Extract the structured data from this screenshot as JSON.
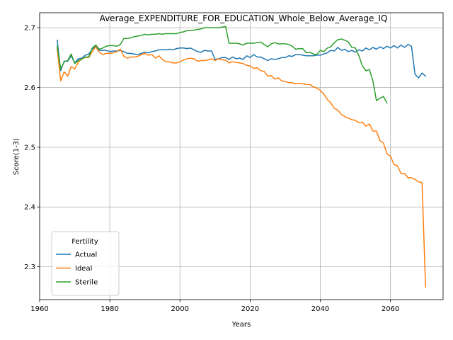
{
  "chart_data": {
    "type": "line",
    "title": "Average_EXPENDITURE_FOR_EDUCATION_Whole_Below_Average_IQ",
    "xlabel": "Years",
    "ylabel": "Score(1-3)",
    "xlim": [
      1960,
      2075
    ],
    "ylim": [
      2.245,
      2.725
    ],
    "xticks": [
      1960,
      1980,
      2000,
      2020,
      2040,
      2060
    ],
    "yticks": [
      2.3,
      2.4,
      2.5,
      2.6,
      2.7
    ],
    "grid": true,
    "legend": {
      "title": "Fertility",
      "placement": "lower-left"
    },
    "series": [
      {
        "name": "Actual",
        "color": "#1f77b4",
        "points": [
          [
            1965,
            2.679
          ],
          [
            1966,
            2.628
          ],
          [
            1967,
            2.644
          ],
          [
            1968,
            2.644
          ],
          [
            1969,
            2.653
          ],
          [
            1970,
            2.641
          ],
          [
            1971,
            2.648
          ],
          [
            1972,
            2.649
          ],
          [
            1973,
            2.654
          ],
          [
            1974,
            2.656
          ],
          [
            1975,
            2.664
          ],
          [
            1976,
            2.669
          ],
          [
            1977,
            2.662
          ],
          [
            1978,
            2.662
          ],
          [
            1979,
            2.662
          ],
          [
            1980,
            2.66
          ],
          [
            1981,
            2.661
          ],
          [
            1982,
            2.661
          ],
          [
            1983,
            2.662
          ],
          [
            1984,
            2.66
          ],
          [
            1985,
            2.657
          ],
          [
            1986,
            2.657
          ],
          [
            1987,
            2.656
          ],
          [
            1988,
            2.655
          ],
          [
            1989,
            2.657
          ],
          [
            1990,
            2.659
          ],
          [
            1991,
            2.658
          ],
          [
            1992,
            2.66
          ],
          [
            1993,
            2.661
          ],
          [
            1994,
            2.663
          ],
          [
            1995,
            2.663
          ],
          [
            1996,
            2.663
          ],
          [
            1997,
            2.664
          ],
          [
            1998,
            2.663
          ],
          [
            1999,
            2.665
          ],
          [
            2000,
            2.666
          ],
          [
            2001,
            2.666
          ],
          [
            2002,
            2.665
          ],
          [
            2003,
            2.666
          ],
          [
            2004,
            2.663
          ],
          [
            2005,
            2.66
          ],
          [
            2006,
            2.659
          ],
          [
            2007,
            2.662
          ],
          [
            2008,
            2.661
          ],
          [
            2009,
            2.661
          ],
          [
            2010,
            2.647
          ],
          [
            2011,
            2.648
          ],
          [
            2012,
            2.65
          ],
          [
            2013,
            2.65
          ],
          [
            2014,
            2.647
          ],
          [
            2015,
            2.651
          ],
          [
            2016,
            2.648
          ],
          [
            2017,
            2.649
          ],
          [
            2018,
            2.647
          ],
          [
            2019,
            2.653
          ],
          [
            2020,
            2.65
          ],
          [
            2021,
            2.655
          ],
          [
            2022,
            2.651
          ],
          [
            2023,
            2.651
          ],
          [
            2024,
            2.648
          ],
          [
            2025,
            2.645
          ],
          [
            2026,
            2.648
          ],
          [
            2027,
            2.647
          ],
          [
            2028,
            2.648
          ],
          [
            2029,
            2.65
          ],
          [
            2030,
            2.65
          ],
          [
            2031,
            2.653
          ],
          [
            2032,
            2.652
          ],
          [
            2033,
            2.655
          ],
          [
            2034,
            2.655
          ],
          [
            2035,
            2.654
          ],
          [
            2036,
            2.653
          ],
          [
            2037,
            2.653
          ],
          [
            2038,
            2.653
          ],
          [
            2039,
            2.654
          ],
          [
            2040,
            2.654
          ],
          [
            2041,
            2.656
          ],
          [
            2042,
            2.658
          ],
          [
            2043,
            2.662
          ],
          [
            2044,
            2.661
          ],
          [
            2045,
            2.667
          ],
          [
            2046,
            2.662
          ],
          [
            2047,
            2.664
          ],
          [
            2048,
            2.66
          ],
          [
            2049,
            2.662
          ],
          [
            2050,
            2.659
          ],
          [
            2051,
            2.663
          ],
          [
            2052,
            2.661
          ],
          [
            2053,
            2.666
          ],
          [
            2054,
            2.663
          ],
          [
            2055,
            2.667
          ],
          [
            2056,
            2.664
          ],
          [
            2057,
            2.668
          ],
          [
            2058,
            2.665
          ],
          [
            2059,
            2.669
          ],
          [
            2060,
            2.666
          ],
          [
            2061,
            2.67
          ],
          [
            2062,
            2.666
          ],
          [
            2063,
            2.671
          ],
          [
            2064,
            2.667
          ],
          [
            2065,
            2.672
          ],
          [
            2066,
            2.669
          ],
          [
            2067,
            2.622
          ],
          [
            2068,
            2.616
          ],
          [
            2069,
            2.624
          ],
          [
            2070,
            2.619
          ]
        ]
      },
      {
        "name": "Ideal",
        "color": "#ff7f0e",
        "points": [
          [
            1965,
            2.665
          ],
          [
            1966,
            2.611
          ],
          [
            1967,
            2.626
          ],
          [
            1968,
            2.619
          ],
          [
            1969,
            2.635
          ],
          [
            1970,
            2.631
          ],
          [
            1971,
            2.642
          ],
          [
            1972,
            2.648
          ],
          [
            1973,
            2.65
          ],
          [
            1974,
            2.65
          ],
          [
            1975,
            2.66
          ],
          [
            1976,
            2.668
          ],
          [
            1977,
            2.659
          ],
          [
            1978,
            2.655
          ],
          [
            1979,
            2.657
          ],
          [
            1980,
            2.657
          ],
          [
            1981,
            2.658
          ],
          [
            1982,
            2.66
          ],
          [
            1983,
            2.664
          ],
          [
            1984,
            2.652
          ],
          [
            1985,
            2.649
          ],
          [
            1986,
            2.651
          ],
          [
            1987,
            2.651
          ],
          [
            1988,
            2.652
          ],
          [
            1989,
            2.655
          ],
          [
            1990,
            2.657
          ],
          [
            1991,
            2.654
          ],
          [
            1992,
            2.655
          ],
          [
            1993,
            2.649
          ],
          [
            1994,
            2.653
          ],
          [
            1995,
            2.647
          ],
          [
            1996,
            2.643
          ],
          [
            1997,
            2.643
          ],
          [
            1998,
            2.641
          ],
          [
            1999,
            2.641
          ],
          [
            2000,
            2.643
          ],
          [
            2001,
            2.646
          ],
          [
            2002,
            2.648
          ],
          [
            2003,
            2.649
          ],
          [
            2004,
            2.648
          ],
          [
            2005,
            2.644
          ],
          [
            2006,
            2.645
          ],
          [
            2007,
            2.645
          ],
          [
            2008,
            2.646
          ],
          [
            2009,
            2.648
          ],
          [
            2010,
            2.645
          ],
          [
            2011,
            2.648
          ],
          [
            2012,
            2.646
          ],
          [
            2013,
            2.646
          ],
          [
            2014,
            2.641
          ],
          [
            2015,
            2.643
          ],
          [
            2016,
            2.642
          ],
          [
            2017,
            2.641
          ],
          [
            2018,
            2.64
          ],
          [
            2019,
            2.637
          ],
          [
            2020,
            2.636
          ],
          [
            2021,
            2.632
          ],
          [
            2022,
            2.633
          ],
          [
            2023,
            2.628
          ],
          [
            2024,
            2.627
          ],
          [
            2025,
            2.619
          ],
          [
            2026,
            2.62
          ],
          [
            2027,
            2.614
          ],
          [
            2028,
            2.616
          ],
          [
            2029,
            2.611
          ],
          [
            2030,
            2.61
          ],
          [
            2031,
            2.608
          ],
          [
            2032,
            2.608
          ],
          [
            2033,
            2.606
          ],
          [
            2034,
            2.607
          ],
          [
            2035,
            2.606
          ],
          [
            2036,
            2.605
          ],
          [
            2037,
            2.605
          ],
          [
            2038,
            2.601
          ],
          [
            2039,
            2.599
          ],
          [
            2040,
            2.595
          ],
          [
            2041,
            2.589
          ],
          [
            2042,
            2.58
          ],
          [
            2043,
            2.574
          ],
          [
            2044,
            2.565
          ],
          [
            2045,
            2.562
          ],
          [
            2046,
            2.555
          ],
          [
            2047,
            2.551
          ],
          [
            2048,
            2.549
          ],
          [
            2049,
            2.546
          ],
          [
            2050,
            2.545
          ],
          [
            2051,
            2.541
          ],
          [
            2052,
            2.542
          ],
          [
            2053,
            2.535
          ],
          [
            2054,
            2.539
          ],
          [
            2055,
            2.527
          ],
          [
            2056,
            2.527
          ],
          [
            2057,
            2.511
          ],
          [
            2058,
            2.507
          ],
          [
            2059,
            2.489
          ],
          [
            2060,
            2.485
          ],
          [
            2061,
            2.471
          ],
          [
            2062,
            2.469
          ],
          [
            2063,
            2.456
          ],
          [
            2064,
            2.456
          ],
          [
            2065,
            2.449
          ],
          [
            2066,
            2.449
          ],
          [
            2067,
            2.446
          ],
          [
            2068,
            2.442
          ],
          [
            2069,
            2.441
          ],
          [
            2070,
            2.266
          ]
        ]
      },
      {
        "name": "Sterile",
        "color": "#2ca02c",
        "points": [
          [
            1965,
            2.669
          ],
          [
            1966,
            2.631
          ],
          [
            1967,
            2.643
          ],
          [
            1968,
            2.645
          ],
          [
            1969,
            2.656
          ],
          [
            1970,
            2.64
          ],
          [
            1971,
            2.645
          ],
          [
            1972,
            2.647
          ],
          [
            1973,
            2.651
          ],
          [
            1974,
            2.651
          ],
          [
            1975,
            2.666
          ],
          [
            1976,
            2.671
          ],
          [
            1977,
            2.664
          ],
          [
            1978,
            2.666
          ],
          [
            1979,
            2.669
          ],
          [
            1980,
            2.67
          ],
          [
            1981,
            2.67
          ],
          [
            1982,
            2.669
          ],
          [
            1983,
            2.672
          ],
          [
            1984,
            2.682
          ],
          [
            1985,
            2.682
          ],
          [
            1986,
            2.683
          ],
          [
            1987,
            2.685
          ],
          [
            1988,
            2.686
          ],
          [
            1989,
            2.687
          ],
          [
            1990,
            2.689
          ],
          [
            1991,
            2.688
          ],
          [
            1992,
            2.689
          ],
          [
            1993,
            2.689
          ],
          [
            1994,
            2.69
          ],
          [
            1995,
            2.689
          ],
          [
            1996,
            2.69
          ],
          [
            1997,
            2.69
          ],
          [
            1998,
            2.69
          ],
          [
            1999,
            2.69
          ],
          [
            2000,
            2.692
          ],
          [
            2001,
            2.693
          ],
          [
            2002,
            2.695
          ],
          [
            2003,
            2.695
          ],
          [
            2004,
            2.696
          ],
          [
            2005,
            2.697
          ],
          [
            2006,
            2.698
          ],
          [
            2007,
            2.7
          ],
          [
            2008,
            2.7
          ],
          [
            2009,
            2.7
          ],
          [
            2010,
            2.7
          ],
          [
            2011,
            2.7
          ],
          [
            2012,
            2.701
          ],
          [
            2013,
            2.702
          ],
          [
            2014,
            2.674
          ],
          [
            2015,
            2.674
          ],
          [
            2016,
            2.674
          ],
          [
            2017,
            2.673
          ],
          [
            2018,
            2.671
          ],
          [
            2019,
            2.674
          ],
          [
            2020,
            2.674
          ],
          [
            2021,
            2.674
          ],
          [
            2022,
            2.675
          ],
          [
            2023,
            2.676
          ],
          [
            2024,
            2.672
          ],
          [
            2025,
            2.668
          ],
          [
            2026,
            2.673
          ],
          [
            2027,
            2.675
          ],
          [
            2028,
            2.673
          ],
          [
            2029,
            2.673
          ],
          [
            2030,
            2.673
          ],
          [
            2031,
            2.672
          ],
          [
            2032,
            2.669
          ],
          [
            2033,
            2.664
          ],
          [
            2034,
            2.665
          ],
          [
            2035,
            2.665
          ],
          [
            2036,
            2.658
          ],
          [
            2037,
            2.659
          ],
          [
            2038,
            2.656
          ],
          [
            2039,
            2.655
          ],
          [
            2040,
            2.662
          ],
          [
            2041,
            2.66
          ],
          [
            2042,
            2.666
          ],
          [
            2043,
            2.668
          ],
          [
            2044,
            2.675
          ],
          [
            2045,
            2.68
          ],
          [
            2046,
            2.681
          ],
          [
            2047,
            2.679
          ],
          [
            2048,
            2.676
          ],
          [
            2049,
            2.667
          ],
          [
            2050,
            2.666
          ],
          [
            2051,
            2.653
          ],
          [
            2052,
            2.636
          ],
          [
            2053,
            2.628
          ],
          [
            2054,
            2.63
          ],
          [
            2055,
            2.611
          ],
          [
            2056,
            2.578
          ],
          [
            2057,
            2.582
          ],
          [
            2058,
            2.585
          ],
          [
            2059,
            2.574
          ]
        ]
      }
    ]
  }
}
